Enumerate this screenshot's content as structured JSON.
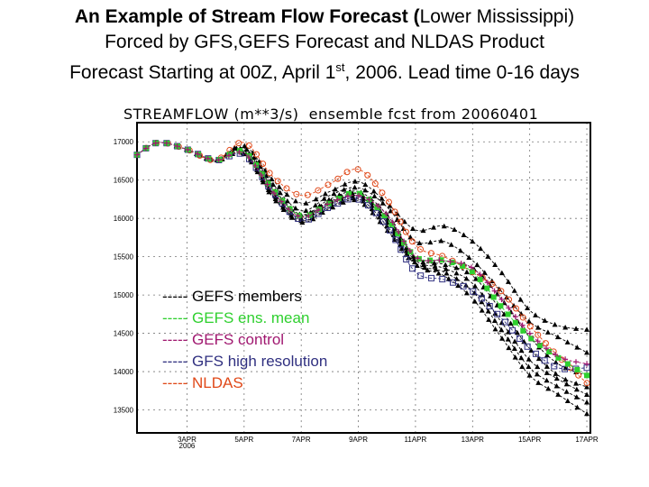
{
  "header": {
    "line1_bold": "An Example of Stream Flow Forecast (",
    "line1_normal": "Lower Mississippi)",
    "line2": "Forced by GFS,GEFS Forecast and NLDAS Product",
    "line3_a": "Forecast Starting at 00Z, April 1",
    "line3_sup": "st",
    "line3_b": ", 2006. Lead time 0-16 days"
  },
  "chart_data": {
    "type": "line",
    "title": "STREAMFLOW (m**3/s)  ensemble fcst from 20060401",
    "ylim": [
      13200,
      17250
    ],
    "xlim": [
      "2006-04-01T06:00",
      "2006-04-17T03:00"
    ],
    "yticks": [
      13500,
      14000,
      14500,
      15000,
      15500,
      16000,
      16500,
      17000
    ],
    "xticks": [
      {
        "date": "2006-04-03",
        "label": "3APR",
        "sublabel": "2006"
      },
      {
        "date": "2006-04-05",
        "label": "5APR"
      },
      {
        "date": "2006-04-07",
        "label": "7APR"
      },
      {
        "date": "2006-04-09",
        "label": "9APR"
      },
      {
        "date": "2006-04-11",
        "label": "11APR"
      },
      {
        "date": "2006-04-13",
        "label": "13APR"
      },
      {
        "date": "2006-04-15",
        "label": "15APR"
      },
      {
        "date": "2006-04-17",
        "label": "17APR"
      }
    ],
    "grid": true,
    "legend_placement": "lower-left inside",
    "x": [
      "2006-04-01T06:00",
      "2006-04-02",
      "2006-04-03",
      "2006-04-04",
      "2006-04-05",
      "2006-04-06",
      "2006-04-07",
      "2006-04-08",
      "2006-04-09",
      "2006-04-10",
      "2006-04-11",
      "2006-04-12",
      "2006-04-13",
      "2006-04-14",
      "2006-04-15",
      "2006-04-16",
      "2006-04-17"
    ],
    "members": [
      [
        16830,
        16990,
        16900,
        16760,
        16950,
        16500,
        16200,
        16350,
        16480,
        16200,
        15850,
        15900,
        15700,
        15300,
        14800,
        14600,
        14550
      ],
      [
        16830,
        16990,
        16900,
        16760,
        16920,
        16450,
        16100,
        16300,
        16400,
        16150,
        15700,
        15700,
        15450,
        15050,
        14650,
        14450,
        14250
      ],
      [
        16830,
        16990,
        16900,
        16760,
        16900,
        16400,
        16050,
        16250,
        16350,
        16050,
        15500,
        15450,
        15350,
        14950,
        14450,
        14100,
        13950
      ],
      [
        16830,
        16990,
        16900,
        16760,
        16880,
        16380,
        16040,
        16220,
        16320,
        16000,
        15480,
        15400,
        15250,
        14800,
        14300,
        13950,
        13800
      ],
      [
        16830,
        16990,
        16900,
        16760,
        16860,
        16330,
        16000,
        16180,
        16290,
        15950,
        15450,
        15350,
        15150,
        14650,
        14150,
        13900,
        13700
      ],
      [
        16830,
        16990,
        16900,
        16760,
        16850,
        16300,
        15970,
        16150,
        16260,
        15900,
        15420,
        15300,
        15050,
        14550,
        14050,
        13800,
        13600
      ],
      [
        16830,
        16990,
        16900,
        16760,
        16840,
        16280,
        15950,
        16130,
        16230,
        15850,
        15400,
        15250,
        14950,
        14450,
        13950,
        13700,
        13450
      ]
    ],
    "series": [
      {
        "name": "GEFS members",
        "color": "#000000",
        "marker": "triangle"
      },
      {
        "name": "GEFS ens. mean",
        "color": "#2fd02f",
        "marker": "filled-square",
        "values": [
          16830,
          16990,
          16900,
          16760,
          16870,
          16380,
          16030,
          16200,
          16330,
          16000,
          15500,
          15450,
          15300,
          14850,
          14450,
          14180,
          13950
        ]
      },
      {
        "name": "GEFS control",
        "color": "#a01870",
        "marker": "cross",
        "values": [
          16830,
          16990,
          16900,
          16760,
          16850,
          16350,
          16020,
          16200,
          16300,
          16050,
          15500,
          15450,
          15350,
          14950,
          14500,
          14200,
          14100
        ]
      },
      {
        "name": "GFS high resolution",
        "color": "#303080",
        "marker": "open-square",
        "values": [
          16830,
          16990,
          16900,
          16760,
          16830,
          16350,
          15980,
          16150,
          16250,
          15900,
          15300,
          15200,
          15050,
          14700,
          14300,
          14050,
          14050
        ]
      },
      {
        "name": "NLDAS",
        "color": "#e04818",
        "marker": "open-circle",
        "values": [
          16830,
          16990,
          16900,
          16760,
          16990,
          16550,
          16300,
          16450,
          16640,
          16250,
          15650,
          15500,
          15300,
          15050,
          14600,
          14200,
          13850
        ]
      }
    ],
    "legend_dash": "-----"
  }
}
